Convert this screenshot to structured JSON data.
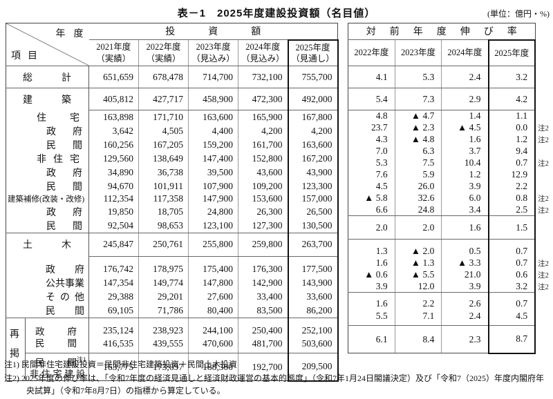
{
  "title": "表－1　2025年度建設投資額（名目値）",
  "unit_note": "(単位：億円・%)",
  "corner": {
    "top": "年度",
    "bottom": "項目"
  },
  "invest": {
    "group_label": "投資額",
    "columns": [
      {
        "year": "2021年度",
        "kind": "（実績）"
      },
      {
        "year": "2022年度",
        "kind": "（実績）"
      },
      {
        "year": "2023年度",
        "kind": "（見込み）"
      },
      {
        "year": "2024年度",
        "kind": "（見込み）"
      },
      {
        "year": "2025年度",
        "kind": "（見通し）"
      }
    ]
  },
  "growth": {
    "group_label": "対前年度伸び率",
    "columns": [
      "2022年度",
      "2023年度",
      "2024年度",
      "2025年度"
    ]
  },
  "rows": [
    {
      "label": "総計",
      "level": "main",
      "invest": [
        "651,659",
        "678,478",
        "714,700",
        "732,100",
        "755,700"
      ],
      "growth": [
        "4.1",
        "5.3",
        "2.4",
        "3.2"
      ],
      "note": ""
    },
    {
      "label": "建築",
      "level": "main",
      "invest": [
        "405,812",
        "427,717",
        "458,900",
        "472,300",
        "492,000"
      ],
      "growth": [
        "5.4",
        "7.3",
        "2.9",
        "4.2"
      ],
      "note": ""
    },
    {
      "label": "住宅",
      "level": "sub1",
      "invest": [
        "163,898",
        "171,710",
        "163,600",
        "165,900",
        "167,800"
      ],
      "growth": [
        "4.8",
        "▲ 4.7",
        "1.4",
        "1.1"
      ],
      "note": ""
    },
    {
      "label": "政府",
      "level": "sub2",
      "invest": [
        "3,642",
        "4,505",
        "4,400",
        "4,200",
        "4,200"
      ],
      "growth": [
        "23.7",
        "▲ 2.3",
        "▲ 4.5",
        "0.0"
      ],
      "note": "注2"
    },
    {
      "label": "民間",
      "level": "sub2",
      "invest": [
        "160,256",
        "167,205",
        "159,200",
        "161,700",
        "163,600"
      ],
      "growth": [
        "4.3",
        "▲ 4.8",
        "1.6",
        "1.2"
      ],
      "note": "注2"
    },
    {
      "label": "非住宅",
      "level": "sub1",
      "invest": [
        "129,560",
        "138,649",
        "147,400",
        "152,800",
        "167,200"
      ],
      "growth": [
        "7.0",
        "6.3",
        "3.7",
        "9.4"
      ],
      "note": ""
    },
    {
      "label": "政府",
      "level": "sub2",
      "invest": [
        "34,890",
        "36,738",
        "39,500",
        "43,600",
        "43,900"
      ],
      "growth": [
        "5.3",
        "7.5",
        "10.4",
        "0.7"
      ],
      "note": "注2"
    },
    {
      "label": "民間",
      "level": "sub2",
      "invest": [
        "94,670",
        "101,911",
        "107,900",
        "109,200",
        "123,300"
      ],
      "growth": [
        "7.6",
        "5.9",
        "1.2",
        "12.9"
      ],
      "note": ""
    },
    {
      "label": "建築補修(改装・改修)",
      "level": "wide",
      "invest": [
        "112,354",
        "117,358",
        "147,900",
        "153,600",
        "157,000"
      ],
      "growth": [
        "4.5",
        "26.0",
        "3.9",
        "2.2"
      ],
      "note": ""
    },
    {
      "label": "政府",
      "level": "sub2",
      "invest": [
        "19,850",
        "18,705",
        "24,800",
        "26,300",
        "26,500"
      ],
      "growth": [
        "▲ 5.8",
        "32.6",
        "6.0",
        "0.8"
      ],
      "note": "注2"
    },
    {
      "label": "民間",
      "level": "sub2",
      "invest": [
        "92,504",
        "98,653",
        "123,100",
        "127,300",
        "130,500"
      ],
      "growth": [
        "6.6",
        "24.8",
        "3.4",
        "2.5"
      ],
      "note": "注2"
    },
    {
      "label": "土木",
      "level": "main",
      "invest": [
        "245,847",
        "250,761",
        "255,800",
        "259,800",
        "263,700"
      ],
      "growth": [
        "2.0",
        "2.0",
        "1.6",
        "1.5"
      ],
      "note": ""
    },
    {
      "label": "政府",
      "level": "sub3",
      "invest": [
        "176,742",
        "178,975",
        "175,400",
        "176,300",
        "177,500"
      ],
      "growth": [
        "1.3",
        "▲ 2.0",
        "0.5",
        "0.7"
      ],
      "note": ""
    },
    {
      "label": "公共事業",
      "level": "sub3",
      "invest": [
        "147,354",
        "149,774",
        "147,800",
        "142,900",
        "143,900"
      ],
      "growth": [
        "1.6",
        "▲ 1.3",
        "▲ 3.3",
        "0.7"
      ],
      "note": "注2"
    },
    {
      "label": "その他",
      "level": "sub3",
      "invest": [
        "29,388",
        "29,201",
        "27,600",
        "33,400",
        "33,600"
      ],
      "growth": [
        "▲ 0.6",
        "▲ 5.5",
        "21.0",
        "0.6"
      ],
      "note": "注2"
    },
    {
      "label": "民間",
      "level": "sub3",
      "invest": [
        "69,105",
        "71,786",
        "80,400",
        "83,500",
        "86,200"
      ],
      "growth": [
        "3.9",
        "12.0",
        "3.9",
        "3.2"
      ],
      "note": "注2"
    }
  ],
  "saikei": {
    "label": "再掲",
    "rows": [
      {
        "label": "政府",
        "invest": [
          "235,124",
          "238,923",
          "244,100",
          "250,400",
          "252,100"
        ],
        "growth": [
          "1.6",
          "2.2",
          "2.6",
          "0.7"
        ],
        "note": ""
      },
      {
        "label": "民間",
        "invest": [
          "416,535",
          "439,555",
          "470,600",
          "481,700",
          "503,600"
        ],
        "growth": [
          "5.5",
          "7.1",
          "2.4",
          "4.5"
        ],
        "note": ""
      },
      {
        "label": "民間",
        "label_sup": "注1",
        "label_line2": "非住宅建設",
        "invest": [
          "163,775",
          "173,697",
          "188,300",
          "192,700",
          "209,500"
        ],
        "growth": [
          "6.1",
          "8.4",
          "2.3",
          "8.7"
        ],
        "note": ""
      }
    ]
  },
  "footnotes": [
    "注1) 民間非住宅建設投資＝民間非住宅建築投資＋民間土木投資",
    "注2) 2025年度の伸び率は、「令和7年度の経済見通しと経済財政運営の基本的態度」（令和7年1月24日閣議決定）及び「令和7（2025）年度内閣府年央試算」（令和7年8月7日）の指標から算定している。"
  ]
}
